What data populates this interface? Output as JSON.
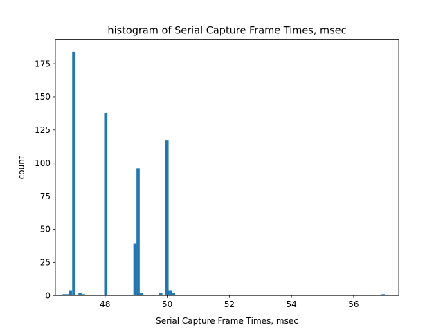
{
  "chart_data": {
    "type": "bar",
    "title": "histogram of Serial Capture Frame Times, msec",
    "xlabel": "Serial Capture Frame Times, msec",
    "ylabel": "count",
    "xlim": [
      46.4,
      57.45
    ],
    "ylim": [
      0,
      193
    ],
    "xticks": [
      48,
      50,
      52,
      54,
      56
    ],
    "yticks": [
      0,
      25,
      50,
      75,
      100,
      125,
      150,
      175
    ],
    "bin_width": 0.1037,
    "color": "#1f77b4",
    "grid": false,
    "bins": [
      {
        "x": 46.63,
        "count": 1
      },
      {
        "x": 46.73,
        "count": 1
      },
      {
        "x": 46.83,
        "count": 4
      },
      {
        "x": 46.94,
        "count": 184
      },
      {
        "x": 47.14,
        "count": 2
      },
      {
        "x": 47.25,
        "count": 1
      },
      {
        "x": 47.97,
        "count": 138
      },
      {
        "x": 48.91,
        "count": 39
      },
      {
        "x": 49.01,
        "count": 96
      },
      {
        "x": 49.11,
        "count": 2
      },
      {
        "x": 49.74,
        "count": 2
      },
      {
        "x": 49.94,
        "count": 117
      },
      {
        "x": 50.04,
        "count": 4
      },
      {
        "x": 50.15,
        "count": 2
      },
      {
        "x": 56.9,
        "count": 1
      }
    ]
  }
}
